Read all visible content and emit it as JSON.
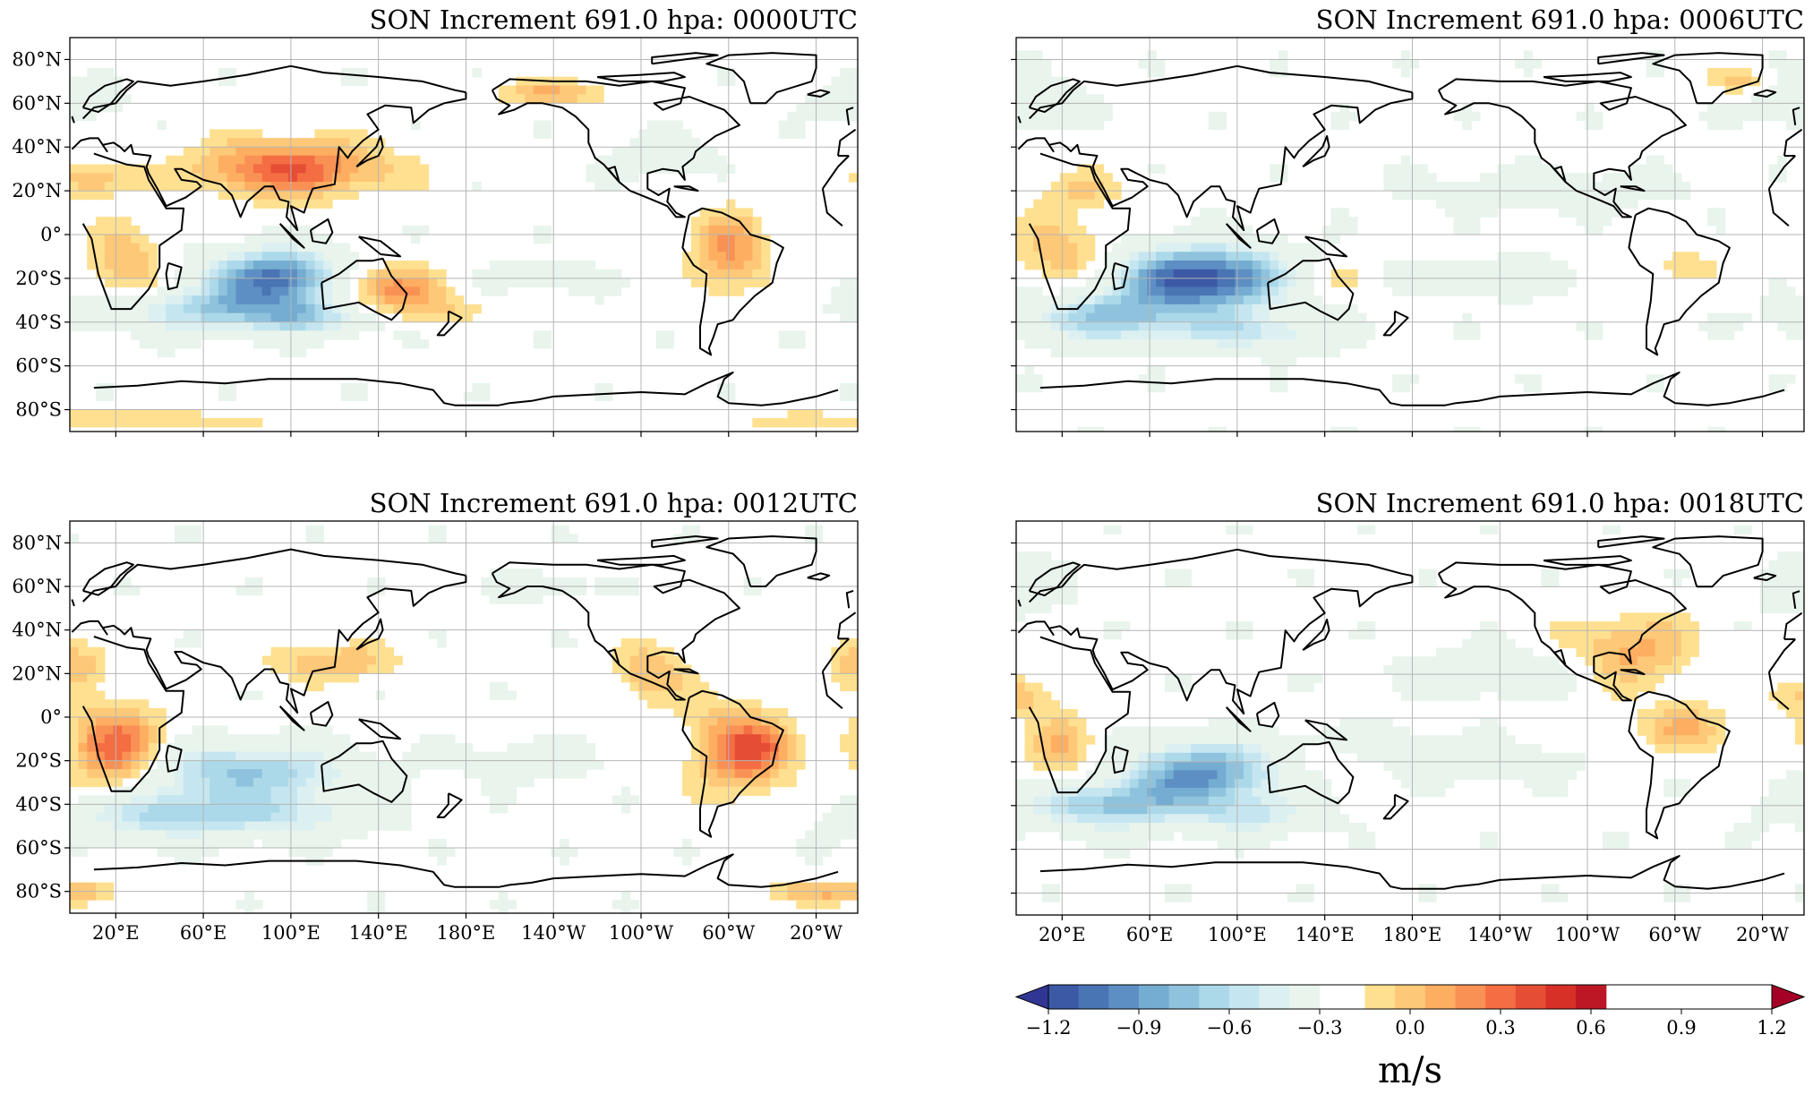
{
  "panels": [
    {
      "title": "SON Increment 691.0 hpa: 0000UTC",
      "show_x_labels": false,
      "blobs": [
        [
          95,
          -20,
          22,
          9,
          -1.0
        ],
        [
          60,
          -35,
          35,
          7,
          -0.5
        ],
        [
          110,
          -38,
          20,
          6,
          -0.4
        ],
        [
          100,
          30,
          30,
          9,
          0.6
        ],
        [
          140,
          -25,
          22,
          8,
          0.5
        ],
        [
          -60,
          -8,
          12,
          14,
          0.4
        ],
        [
          25,
          -15,
          12,
          14,
          0.3
        ],
        [
          -140,
          65,
          20,
          4,
          0.3
        ],
        [
          20,
          -85,
          60,
          3,
          0.2
        ],
        [
          -90,
          35,
          15,
          6,
          -0.25
        ],
        [
          10,
          25,
          12,
          6,
          0.3
        ],
        [
          170,
          -35,
          15,
          4,
          0.15
        ],
        [
          -150,
          -20,
          25,
          5,
          -0.15
        ],
        [
          0,
          60,
          15,
          6,
          -0.2
        ]
      ]
    },
    {
      "title": "SON Increment 691.0 hpa: 0006UTC",
      "show_x_labels": false,
      "blobs": [
        [
          85,
          -20,
          28,
          10,
          -1.1
        ],
        [
          40,
          -38,
          30,
          8,
          -0.6
        ],
        [
          110,
          -45,
          25,
          6,
          -0.4
        ],
        [
          20,
          -10,
          15,
          14,
          0.3
        ],
        [
          30,
          20,
          15,
          6,
          0.2
        ],
        [
          140,
          -20,
          15,
          6,
          0.2
        ],
        [
          -60,
          -15,
          12,
          8,
          0.15
        ],
        [
          -30,
          70,
          10,
          4,
          0.25
        ],
        [
          -120,
          20,
          40,
          6,
          -0.2
        ],
        [
          -140,
          -20,
          30,
          6,
          -0.2
        ],
        [
          0,
          60,
          18,
          8,
          -0.25
        ]
      ]
    },
    {
      "title": "SON Increment 691.0 hpa: 0012UTC",
      "show_x_labels": true,
      "blobs": [
        [
          80,
          -25,
          35,
          9,
          -0.6
        ],
        [
          40,
          -45,
          30,
          8,
          -0.5
        ],
        [
          100,
          -45,
          30,
          7,
          -0.35
        ],
        [
          20,
          -15,
          15,
          14,
          0.6
        ],
        [
          -55,
          -15,
          15,
          14,
          0.55
        ],
        [
          -95,
          20,
          12,
          10,
          0.3
        ],
        [
          120,
          25,
          20,
          6,
          0.3
        ],
        [
          -40,
          -15,
          10,
          6,
          0.2
        ],
        [
          -10,
          -80,
          25,
          4,
          0.3
        ],
        [
          -150,
          -20,
          20,
          6,
          -0.2
        ],
        [
          0,
          25,
          10,
          8,
          0.3
        ],
        [
          -145,
          60,
          15,
          4,
          -0.2
        ]
      ]
    },
    {
      "title": "SON Increment 691.0 hpa: 0018UTC",
      "show_x_labels": true,
      "blobs": [
        [
          85,
          -25,
          25,
          10,
          -0.8
        ],
        [
          40,
          -40,
          30,
          8,
          -0.6
        ],
        [
          110,
          -45,
          20,
          6,
          -0.35
        ],
        [
          -80,
          30,
          20,
          12,
          0.35
        ],
        [
          -55,
          -5,
          15,
          8,
          0.3
        ],
        [
          20,
          -15,
          12,
          12,
          0.3
        ],
        [
          0,
          10,
          12,
          6,
          0.25
        ],
        [
          -140,
          20,
          35,
          8,
          -0.2
        ],
        [
          -150,
          -20,
          30,
          6,
          -0.2
        ],
        [
          160,
          -10,
          25,
          5,
          -0.15
        ],
        [
          0,
          60,
          15,
          8,
          -0.25
        ],
        [
          140,
          -20,
          12,
          5,
          0.15
        ]
      ]
    }
  ],
  "lat_ticks": [
    "80°N",
    "60°N",
    "40°N",
    "20°N",
    "0°",
    "20°S",
    "40°S",
    "60°S",
    "80°S"
  ],
  "lon_ticks": [
    "20°E",
    "60°E",
    "100°E",
    "140°E",
    "180°E",
    "140°W",
    "100°W",
    "60°W",
    "20°W"
  ],
  "colorbar": {
    "unit": "m/s",
    "tick_labels": [
      "−1.2",
      "−0.9",
      "−0.6",
      "−0.3",
      "0.0",
      "0.3",
      "0.6",
      "0.9",
      "1.2"
    ],
    "colors_negative": [
      "#313695",
      "#3c59a6",
      "#4a75b4",
      "#5d8fc4",
      "#74add1",
      "#8fc3dd",
      "#abd9e9",
      "#c5e6f0",
      "#dcf0f2",
      "#e8f4ec"
    ],
    "color_zero": "#ffffff",
    "colors_positive": [
      "#fee090",
      "#fdc878",
      "#fdae61",
      "#f99155",
      "#f46d43",
      "#e54e35",
      "#d73027",
      "#bd1726",
      "#a50026"
    ]
  }
}
